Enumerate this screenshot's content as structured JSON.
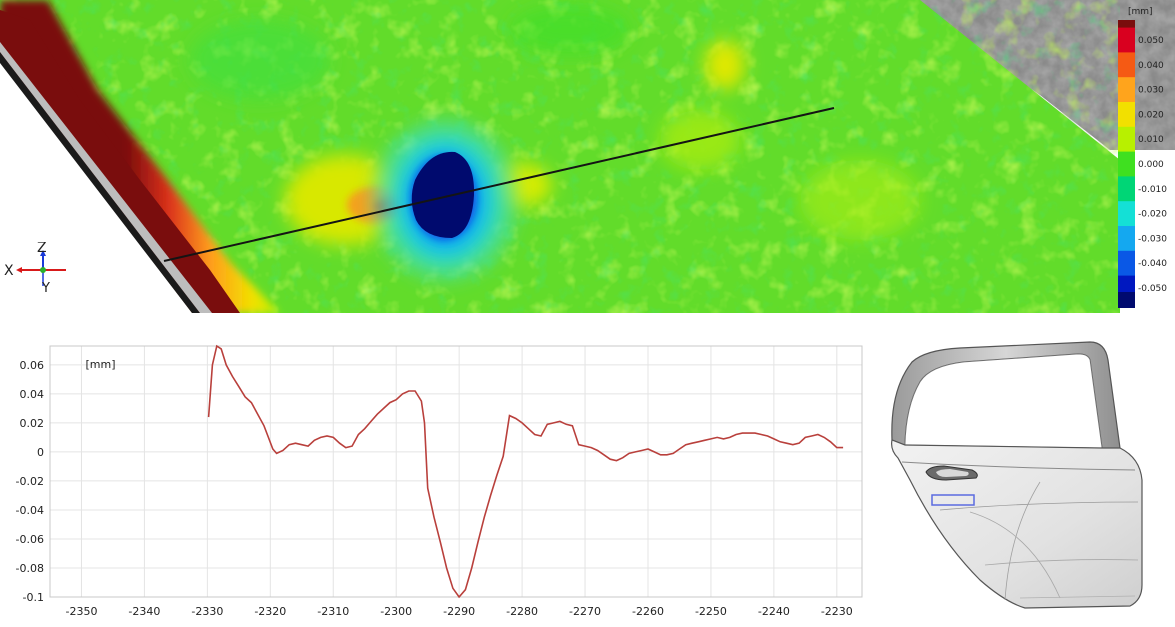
{
  "colorbar": {
    "unit": "[mm]",
    "labels": [
      "0.050",
      "0.040",
      "0.030",
      "0.020",
      "0.010",
      "0.000",
      "-0.010",
      "-0.020",
      "-0.030",
      "-0.040",
      "-0.050"
    ],
    "colors": [
      "#d9001f",
      "#f55a14",
      "#ffa41c",
      "#f2e000",
      "#b8f000",
      "#3fe020",
      "#00d676",
      "#14e0d6",
      "#14a8f0",
      "#0a58e6",
      "#0018c0"
    ],
    "over_color": "#7a0d0d",
    "under_color": "#000a6e"
  },
  "triad": {
    "z": "Z",
    "x": "X",
    "y": "Y"
  },
  "chart_data": {
    "type": "line",
    "unit_label": "[mm]",
    "xlim": [
      -2355,
      -2226
    ],
    "ylim": [
      -0.1,
      0.073
    ],
    "xticks": [
      -2350,
      -2340,
      -2330,
      -2320,
      -2310,
      -2300,
      -2290,
      -2280,
      -2270,
      -2260,
      -2250,
      -2240,
      -2230
    ],
    "yticks": [
      0.06,
      0.04,
      0.02,
      0,
      -0.02,
      -0.04,
      -0.06,
      -0.08,
      -0.1
    ],
    "ytick_labels": [
      "0.06",
      "0.04",
      "0.02",
      "0",
      "-0.02",
      "-0.04",
      "-0.06",
      "-0.08",
      "-0.1"
    ],
    "grid": true,
    "line_color": "#b9403c",
    "x": [
      -2329.8,
      -2329.2,
      -2328.5,
      -2327.8,
      -2327.0,
      -2326.0,
      -2325.0,
      -2324.0,
      -2323.0,
      -2322.0,
      -2321.0,
      -2320.3,
      -2319.6,
      -2319.0,
      -2318.0,
      -2317.0,
      -2316.0,
      -2315.0,
      -2314.0,
      -2313.0,
      -2312.0,
      -2311.0,
      -2310.0,
      -2309.0,
      -2308.0,
      -2307.0,
      -2306.0,
      -2305.0,
      -2304.0,
      -2303.0,
      -2302.0,
      -2301.0,
      -2300.0,
      -2299.0,
      -2298.0,
      -2297.0,
      -2296.0,
      -2295.5,
      -2295.0,
      -2294.0,
      -2293.0,
      -2292.0,
      -2291.0,
      -2290.0,
      -2289.0,
      -2288.0,
      -2287.0,
      -2286.0,
      -2285.0,
      -2284.0,
      -2283.0,
      -2282.0,
      -2281.0,
      -2280.0,
      -2279.0,
      -2278.0,
      -2277.0,
      -2276.0,
      -2275.0,
      -2274.0,
      -2273.0,
      -2272.0,
      -2271.0,
      -2270.0,
      -2269.0,
      -2268.0,
      -2267.0,
      -2266.0,
      -2265.0,
      -2264.0,
      -2263.0,
      -2262.0,
      -2261.0,
      -2260.0,
      -2259.0,
      -2258.0,
      -2257.0,
      -2256.0,
      -2255.0,
      -2254.0,
      -2253.0,
      -2252.0,
      -2251.0,
      -2250.0,
      -2249.0,
      -2248.0,
      -2247.0,
      -2246.0,
      -2245.0,
      -2244.0,
      -2243.0,
      -2242.0,
      -2241.0,
      -2240.0,
      -2239.0,
      -2238.0,
      -2237.0,
      -2236.0,
      -2235.0,
      -2234.0,
      -2233.0,
      -2232.0,
      -2231.0,
      -2230.0,
      -2229.0
    ],
    "y": [
      0.024,
      0.06,
      0.073,
      0.071,
      0.06,
      0.052,
      0.045,
      0.038,
      0.034,
      0.026,
      0.018,
      0.01,
      0.002,
      -0.001,
      0.001,
      0.005,
      0.006,
      0.005,
      0.004,
      0.008,
      0.01,
      0.011,
      0.01,
      0.006,
      0.003,
      0.004,
      0.012,
      0.016,
      0.021,
      0.026,
      0.03,
      0.034,
      0.036,
      0.04,
      0.042,
      0.042,
      0.035,
      0.02,
      -0.025,
      -0.045,
      -0.062,
      -0.08,
      -0.094,
      -0.1,
      -0.095,
      -0.08,
      -0.062,
      -0.045,
      -0.03,
      -0.016,
      -0.003,
      0.025,
      0.023,
      0.02,
      0.016,
      0.012,
      0.011,
      0.019,
      0.02,
      0.021,
      0.019,
      0.018,
      0.005,
      0.004,
      0.003,
      0.001,
      -0.002,
      -0.005,
      -0.006,
      -0.004,
      -0.001,
      0.0,
      0.001,
      0.002,
      0.0,
      -0.002,
      -0.002,
      -0.001,
      0.002,
      0.005,
      0.006,
      0.007,
      0.008,
      0.009,
      0.01,
      0.009,
      0.01,
      0.012,
      0.013,
      0.013,
      0.013,
      0.012,
      0.011,
      0.009,
      0.007,
      0.006,
      0.005,
      0.006,
      0.01,
      0.011,
      0.012,
      0.01,
      0.007,
      0.003,
      0.003
    ]
  }
}
